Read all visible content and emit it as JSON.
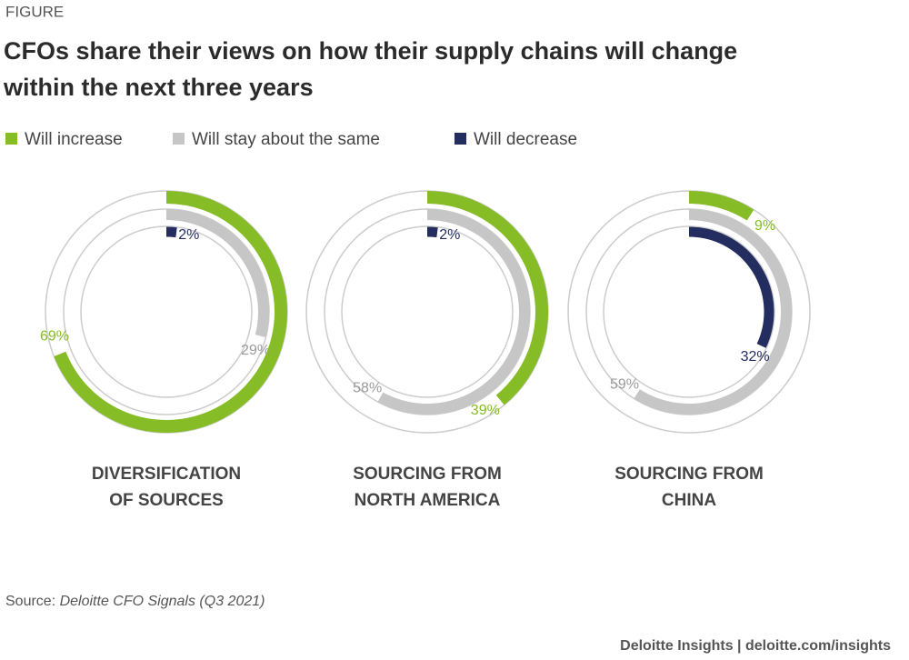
{
  "figure_label": "FIGURE",
  "title": [
    "CFOs share their views on how their supply chains will change",
    "within the next three years"
  ],
  "legend": [
    {
      "name": "Will increase",
      "color": "#86bc25"
    },
    {
      "name": "Will stay about the same",
      "color": "#c6c6c6"
    },
    {
      "name": "Will decrease",
      "color": "#232d5f"
    }
  ],
  "chart_data": [
    {
      "type": "radial_bar",
      "title": [
        "DIVERSIFICATION",
        "OF SOURCES"
      ],
      "rlim": [
        0,
        100
      ],
      "values": [
        69,
        29,
        2
      ],
      "value_labels": [
        "69%",
        "29%",
        "2%"
      ]
    },
    {
      "type": "radial_bar",
      "title": [
        "SOURCING FROM",
        "NORTH AMERICA"
      ],
      "rlim": [
        0,
        100
      ],
      "values": [
        39,
        58,
        2
      ],
      "value_labels": [
        "39%",
        "58%",
        "2%"
      ]
    },
    {
      "type": "radial_bar",
      "title": [
        "SOURCING FROM",
        "CHINA"
      ],
      "rlim": [
        0,
        100
      ],
      "values": [
        9,
        59,
        32
      ],
      "value_labels": [
        "9%",
        "59%",
        "32%"
      ]
    }
  ],
  "source": {
    "label": "Source:",
    "text": "Deloitte CFO Signals (Q3 2021)"
  },
  "footer": "Deloitte Insights | deloitte.com/insights"
}
